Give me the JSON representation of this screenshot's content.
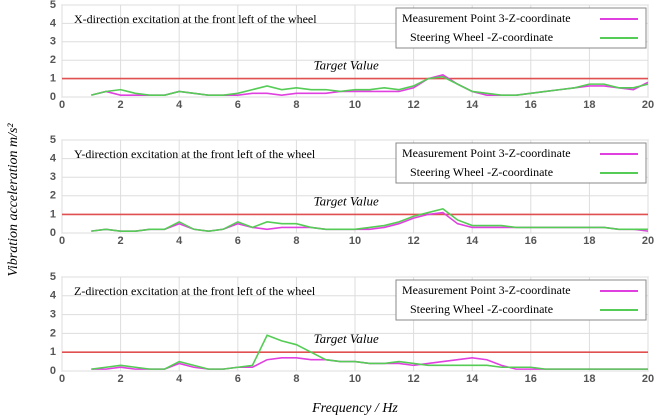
{
  "axis_labels": {
    "xlabel": "Frequency / Hz",
    "ylabel": "Vibration acceleration m/s²"
  },
  "chart_data": [
    {
      "type": "line",
      "title": "X-direction excitation at the front left of the wheel",
      "x": [
        1,
        1.5,
        2,
        2.5,
        3,
        3.5,
        4,
        4.5,
        5,
        5.5,
        6,
        6.5,
        7,
        7.5,
        8,
        8.5,
        9,
        9.5,
        10,
        10.5,
        11,
        11.5,
        12,
        12.5,
        13,
        13.5,
        14,
        14.5,
        15,
        15.5,
        16,
        16.5,
        17,
        17.5,
        18,
        18.5,
        19,
        19.5,
        20
      ],
      "series": [
        {
          "name": "Measurement Point 3-Z-coordinate",
          "color": "#e040e0",
          "values": [
            0.1,
            0.3,
            0.1,
            0.1,
            0.1,
            0.1,
            0.3,
            0.2,
            0.1,
            0.1,
            0.1,
            0.2,
            0.2,
            0.1,
            0.2,
            0.2,
            0.2,
            0.3,
            0.3,
            0.3,
            0.3,
            0.3,
            0.5,
            1.0,
            1.2,
            0.7,
            0.3,
            0.1,
            0.1,
            0.1,
            0.2,
            0.3,
            0.4,
            0.5,
            0.6,
            0.6,
            0.5,
            0.4,
            0.8
          ]
        },
        {
          "name": "Steering Wheel -Z-coordinate",
          "color": "#55cc55",
          "values": [
            0.1,
            0.3,
            0.4,
            0.2,
            0.1,
            0.1,
            0.3,
            0.2,
            0.1,
            0.1,
            0.2,
            0.4,
            0.6,
            0.4,
            0.5,
            0.4,
            0.4,
            0.3,
            0.4,
            0.4,
            0.5,
            0.4,
            0.6,
            1.0,
            1.1,
            0.7,
            0.3,
            0.2,
            0.1,
            0.1,
            0.2,
            0.3,
            0.4,
            0.5,
            0.7,
            0.7,
            0.5,
            0.5,
            0.7
          ]
        }
      ],
      "xlim": [
        0,
        20
      ],
      "ylim": [
        0,
        5
      ],
      "xticks": [
        0,
        2,
        4,
        6,
        8,
        10,
        12,
        14,
        16,
        18,
        20
      ],
      "yticks": [
        0,
        1,
        2,
        3,
        4,
        5
      ],
      "grid": true,
      "legend": "upper right",
      "reference_line": 1,
      "reference_color": "#e05050",
      "reference_label": "Target Value"
    },
    {
      "type": "line",
      "title": "Y-direction excitation at the front left of the wheel",
      "x": [
        1,
        1.5,
        2,
        2.5,
        3,
        3.5,
        4,
        4.5,
        5,
        5.5,
        6,
        6.5,
        7,
        7.5,
        8,
        8.5,
        9,
        9.5,
        10,
        10.5,
        11,
        11.5,
        12,
        12.5,
        13,
        13.5,
        14,
        14.5,
        15,
        15.5,
        16,
        16.5,
        17,
        17.5,
        18,
        18.5,
        19,
        19.5,
        20
      ],
      "series": [
        {
          "name": "Measurement Point 3-Z-coordinate",
          "color": "#e040e0",
          "values": [
            0.1,
            0.2,
            0.1,
            0.1,
            0.2,
            0.2,
            0.5,
            0.2,
            0.1,
            0.2,
            0.5,
            0.3,
            0.2,
            0.3,
            0.3,
            0.3,
            0.2,
            0.2,
            0.2,
            0.2,
            0.3,
            0.5,
            0.8,
            1.0,
            1.1,
            0.5,
            0.3,
            0.3,
            0.3,
            0.3,
            0.3,
            0.3,
            0.3,
            0.3,
            0.3,
            0.3,
            0.2,
            0.2,
            0.1
          ]
        },
        {
          "name": "Steering Wheel -Z-coordinate",
          "color": "#55cc55",
          "values": [
            0.1,
            0.2,
            0.1,
            0.1,
            0.2,
            0.2,
            0.6,
            0.2,
            0.1,
            0.2,
            0.6,
            0.3,
            0.6,
            0.5,
            0.5,
            0.3,
            0.2,
            0.2,
            0.2,
            0.3,
            0.4,
            0.6,
            0.9,
            1.1,
            1.3,
            0.7,
            0.4,
            0.4,
            0.4,
            0.3,
            0.3,
            0.3,
            0.3,
            0.3,
            0.3,
            0.3,
            0.2,
            0.2,
            0.2
          ]
        }
      ],
      "xlim": [
        0,
        20
      ],
      "ylim": [
        0,
        5
      ],
      "xticks": [
        0,
        2,
        4,
        6,
        8,
        10,
        12,
        14,
        16,
        18,
        20
      ],
      "yticks": [
        0,
        1,
        2,
        3,
        4,
        5
      ],
      "grid": true,
      "legend": "upper right",
      "reference_line": 1,
      "reference_color": "#e05050",
      "reference_label": "Target Value"
    },
    {
      "type": "line",
      "title": "Z-direction excitation at the front left of the wheel",
      "x": [
        1,
        1.5,
        2,
        2.5,
        3,
        3.5,
        4,
        4.5,
        5,
        5.5,
        6,
        6.5,
        7,
        7.5,
        8,
        8.5,
        9,
        9.5,
        10,
        10.5,
        11,
        11.5,
        12,
        12.5,
        13,
        13.5,
        14,
        14.5,
        15,
        15.5,
        16,
        16.5,
        17,
        17.5,
        18,
        18.5,
        19,
        19.5,
        20
      ],
      "series": [
        {
          "name": "Measurement Point 3-Z-coordinate",
          "color": "#e040e0",
          "values": [
            0.1,
            0.1,
            0.2,
            0.1,
            0.1,
            0.1,
            0.4,
            0.2,
            0.1,
            0.1,
            0.2,
            0.2,
            0.6,
            0.7,
            0.7,
            0.6,
            0.6,
            0.5,
            0.5,
            0.4,
            0.4,
            0.4,
            0.3,
            0.4,
            0.5,
            0.6,
            0.7,
            0.6,
            0.3,
            0.1,
            0.1,
            0.1,
            0.1,
            0.1,
            0.1,
            0.1,
            0.1,
            0.1,
            0.1
          ]
        },
        {
          "name": "Steering Wheel -Z-coordinate",
          "color": "#55cc55",
          "values": [
            0.1,
            0.2,
            0.3,
            0.2,
            0.1,
            0.1,
            0.5,
            0.3,
            0.1,
            0.1,
            0.2,
            0.3,
            1.9,
            1.6,
            1.4,
            1.0,
            0.6,
            0.5,
            0.5,
            0.4,
            0.4,
            0.5,
            0.4,
            0.3,
            0.3,
            0.3,
            0.3,
            0.3,
            0.2,
            0.2,
            0.2,
            0.1,
            0.1,
            0.1,
            0.1,
            0.1,
            0.1,
            0.1,
            0.1
          ]
        }
      ],
      "xlim": [
        0,
        20
      ],
      "ylim": [
        0,
        5
      ],
      "xticks": [
        0,
        2,
        4,
        6,
        8,
        10,
        12,
        14,
        16,
        18,
        20
      ],
      "yticks": [
        0,
        1,
        2,
        3,
        4,
        5
      ],
      "grid": true,
      "legend": "upper right",
      "reference_line": 1,
      "reference_color": "#e05050",
      "reference_label": "Target Value"
    }
  ]
}
